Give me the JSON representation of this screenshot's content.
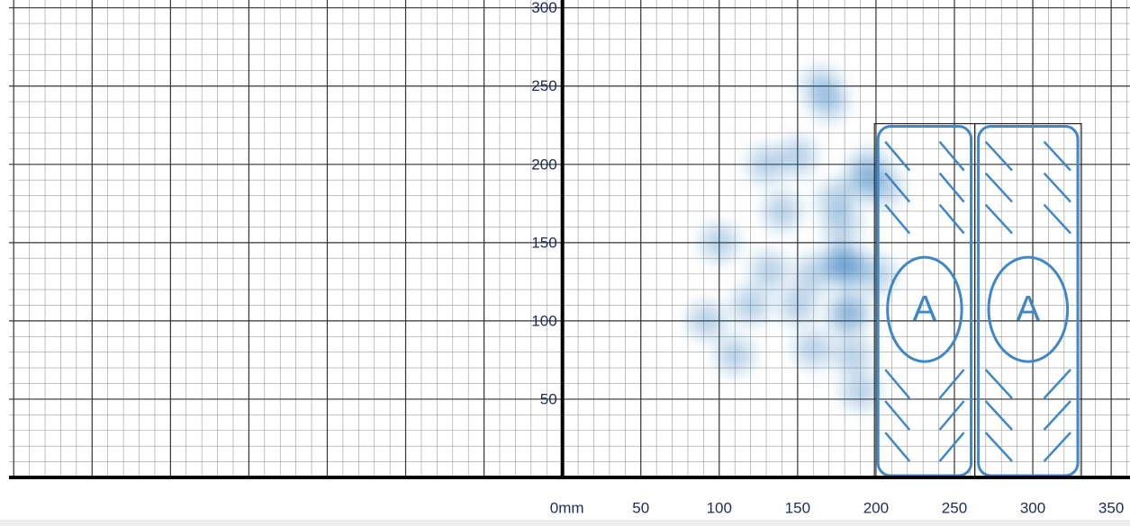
{
  "chart_data": {
    "type": "density",
    "x": [
      180,
      182,
      178,
      183,
      182,
      192,
      196,
      160,
      120,
      100,
      130,
      150,
      170,
      185,
      110,
      92,
      205,
      160,
      140,
      178,
      175,
      200,
      132,
      190,
      165,
      150
    ],
    "y": [
      135,
      133,
      140,
      108,
      102,
      190,
      198,
      82,
      110,
      150,
      200,
      205,
      240,
      78,
      78,
      100,
      185,
      130,
      170,
      162,
      178,
      130,
      132,
      55,
      250,
      110
    ],
    "color": "#1f6fb5",
    "xlim": [
      -353,
      362
    ],
    "ylim": [
      0,
      305
    ],
    "xticks": [
      {
        "value": 0,
        "label": "0mm"
      },
      50,
      100,
      150,
      200,
      250,
      300,
      350
    ],
    "yticks": [
      50,
      100,
      150,
      200,
      250,
      300
    ],
    "grid": true,
    "markers": [
      {
        "label": "A",
        "x": [
          199,
          263
        ],
        "y": [
          0,
          226
        ]
      },
      {
        "label": "A",
        "x": [
          263,
          331
        ],
        "y": [
          0,
          226
        ]
      }
    ]
  }
}
